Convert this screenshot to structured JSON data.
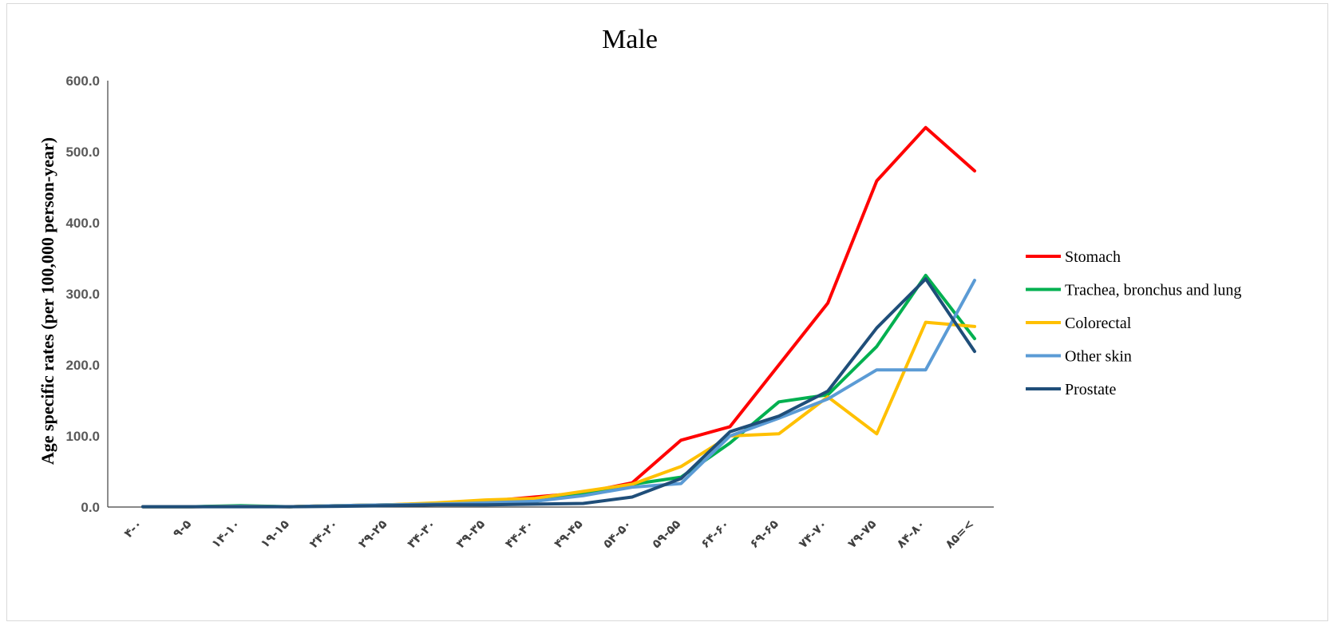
{
  "chart_data": {
    "type": "line",
    "title": "Male",
    "xlabel": "",
    "ylabel": "Age specific rates (per  100,000 person-year)",
    "ylim": [
      0,
      600
    ],
    "yticks": [
      "0.0",
      "100.0",
      "200.0",
      "300.0",
      "400.0",
      "500.0",
      "600.0"
    ],
    "ytick_values": [
      0,
      100,
      200,
      300,
      400,
      500,
      600
    ],
    "grid": false,
    "legend_position": "right",
    "categories": [
      "۴-۰",
      "۹-۵",
      "۱۴-۱۰",
      "۱۹-۱۵",
      "۲۴-۲۰",
      "۲۹-۲۵",
      "۳۴-۳۰",
      "۳۹-۳۵",
      "۴۴-۴۰",
      "۴۹-۴۵",
      "۵۴-۵۰",
      "۵۹-۵۵",
      "۶۴-۶۰",
      "۶۹-۶۵",
      "۷۴-۷۰",
      "۷۹-۷۵",
      "۸۴-۸۰",
      "۸۵=<"
    ],
    "series": [
      {
        "name": "Stomach",
        "color": "#ff0000",
        "values": [
          0.5,
          0.5,
          1,
          0.5,
          2,
          3,
          5,
          8,
          14,
          20,
          34,
          94,
          113,
          200,
          287,
          459,
          534,
          473
        ]
      },
      {
        "name": "Trachea, bronchus and lung",
        "color": "#00b050",
        "values": [
          0.5,
          0.5,
          2,
          0.5,
          2,
          3,
          4,
          6,
          8,
          18,
          32,
          42,
          90,
          148,
          158,
          226,
          326,
          237
        ]
      },
      {
        "name": "Colorectal",
        "color": "#ffc000",
        "values": [
          0.5,
          0.5,
          1,
          0.5,
          2,
          3,
          6,
          10,
          12,
          22,
          32,
          57,
          100,
          103,
          155,
          103,
          260,
          254
        ]
      },
      {
        "name": "Other skin",
        "color": "#5b9bd5",
        "values": [
          0.5,
          0.5,
          1,
          0.5,
          2,
          3,
          4,
          6,
          8,
          16,
          28,
          33,
          100,
          125,
          152,
          193,
          193,
          319
        ]
      },
      {
        "name": "Prostate",
        "color": "#1f4e79",
        "values": [
          0.5,
          0.5,
          0.5,
          0.5,
          1,
          2,
          3,
          3,
          4,
          5,
          14,
          40,
          106,
          128,
          163,
          252,
          321,
          219
        ]
      }
    ]
  }
}
